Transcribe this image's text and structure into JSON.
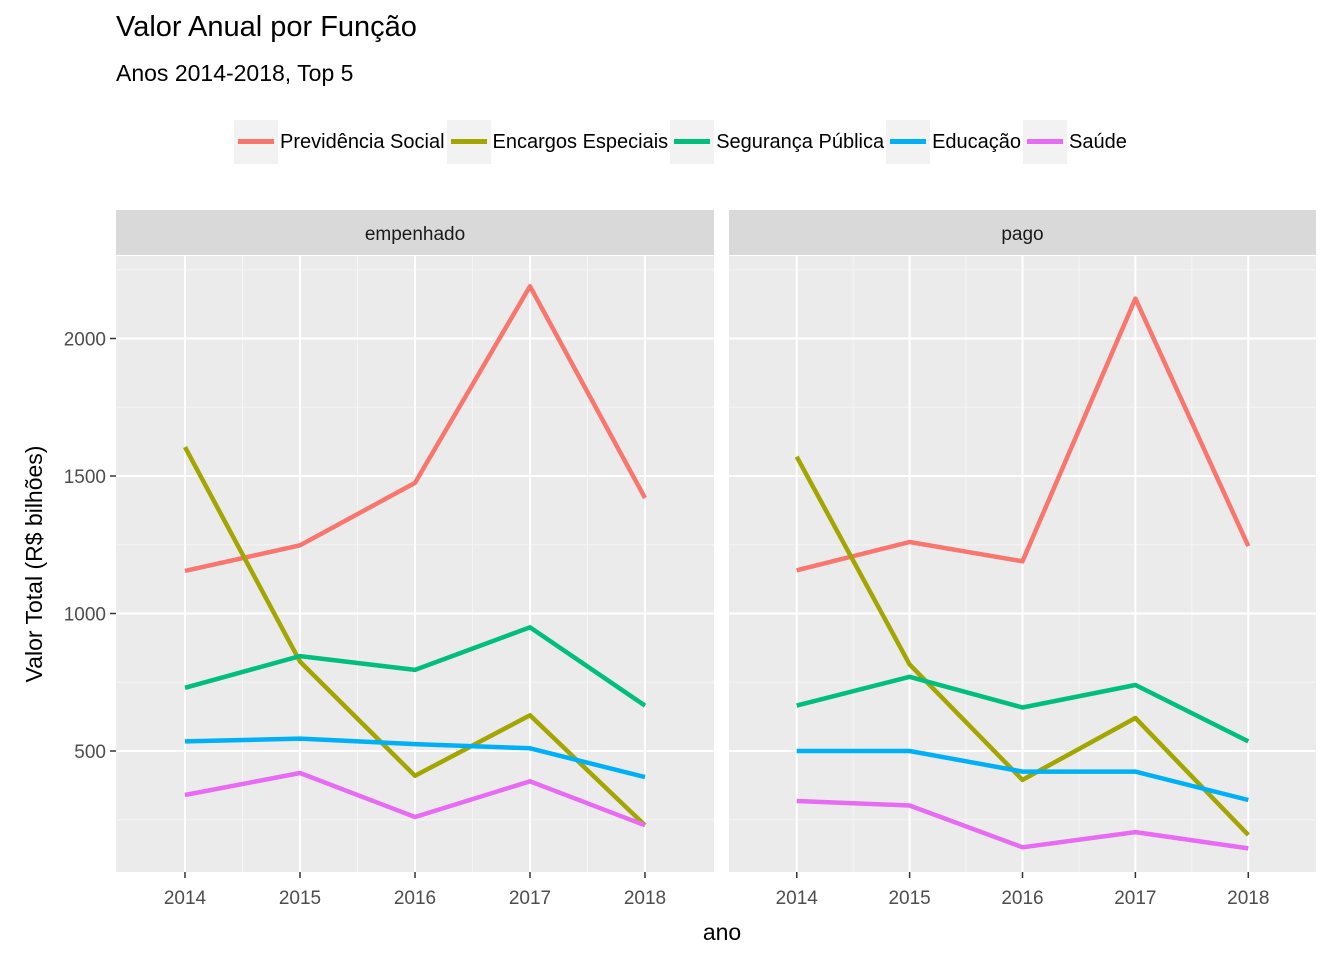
{
  "chart_data": {
    "type": "line",
    "title": "Valor Anual por Função",
    "subtitle": "Anos 2014-2018, Top 5",
    "xlabel": "ano",
    "ylabel": "Valor Total (R$ bilhões)",
    "x": [
      2014,
      2015,
      2016,
      2017,
      2018
    ],
    "ylim": [
      60,
      2300
    ],
    "y_ticks": [
      500,
      1000,
      1500,
      2000
    ],
    "grid": true,
    "legend_position": "top",
    "panels": [
      {
        "label": "empenhado",
        "series": [
          {
            "name": "Previdência Social",
            "color": "#F8766D",
            "values": [
              1155,
              1248,
              1475,
              2190,
              1420
            ]
          },
          {
            "name": "Encargos Especiais",
            "color": "#A3A500",
            "values": [
              1605,
              825,
              410,
              630,
              230
            ]
          },
          {
            "name": "Segurança Pública",
            "color": "#00BF7D",
            "values": [
              730,
              845,
              795,
              950,
              665
            ]
          },
          {
            "name": "Educação",
            "color": "#00B0F6",
            "values": [
              535,
              545,
              525,
              510,
              405
            ]
          },
          {
            "name": "Saúde",
            "color": "#E76BF3",
            "values": [
              340,
              420,
              260,
              390,
              230
            ]
          }
        ]
      },
      {
        "label": "pago",
        "series": [
          {
            "name": "Previdência Social",
            "color": "#F8766D",
            "values": [
              1157,
              1260,
              1190,
              2145,
              1245
            ]
          },
          {
            "name": "Encargos Especiais",
            "color": "#A3A500",
            "values": [
              1570,
              815,
              395,
              620,
              195
            ]
          },
          {
            "name": "Segurança Pública",
            "color": "#00BF7D",
            "values": [
              665,
              770,
              658,
              740,
              535
            ]
          },
          {
            "name": "Educação",
            "color": "#00B0F6",
            "values": [
              500,
              500,
              425,
              425,
              322
            ]
          },
          {
            "name": "Saúde",
            "color": "#E76BF3",
            "values": [
              318,
              302,
              150,
              205,
              146
            ]
          }
        ]
      }
    ]
  }
}
